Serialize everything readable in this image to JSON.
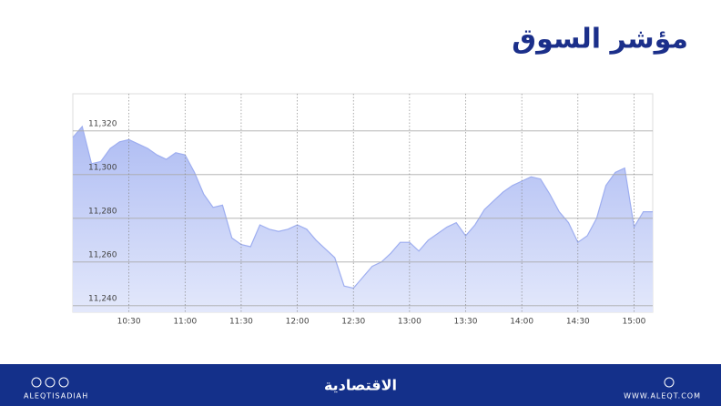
{
  "chart_data": {
    "type": "area",
    "title": "مؤشر السوق",
    "x": [
      "10:00",
      "10:05",
      "10:10",
      "10:15",
      "10:20",
      "10:25",
      "10:30",
      "10:35",
      "10:40",
      "10:45",
      "10:50",
      "10:55",
      "11:00",
      "11:05",
      "11:10",
      "11:15",
      "11:20",
      "11:25",
      "11:30",
      "11:35",
      "11:40",
      "11:45",
      "11:50",
      "11:55",
      "12:00",
      "12:05",
      "12:10",
      "12:15",
      "12:20",
      "12:25",
      "12:30",
      "12:35",
      "12:40",
      "12:45",
      "12:50",
      "12:55",
      "13:00",
      "13:05",
      "13:10",
      "13:15",
      "13:20",
      "13:25",
      "13:30",
      "13:35",
      "13:40",
      "13:45",
      "13:50",
      "13:55",
      "14:00",
      "14:05",
      "14:10",
      "14:15",
      "14:20",
      "14:25",
      "14:30",
      "14:35",
      "14:40",
      "14:45",
      "14:50",
      "14:55",
      "15:00",
      "15:05",
      "15:10"
    ],
    "values": [
      11317,
      11322,
      11305,
      11306,
      11312,
      11315,
      11316,
      11314,
      11312,
      11309,
      11307,
      11310,
      11309,
      11301,
      11291,
      11285,
      11286,
      11271,
      11268,
      11267,
      11277,
      11275,
      11274,
      11275,
      11277,
      11275,
      11270,
      11266,
      11262,
      11249,
      11248,
      11253,
      11258,
      11260,
      11264,
      11269,
      11269,
      11265,
      11270,
      11273,
      11276,
      11278,
      11272,
      11277,
      11284,
      11288,
      11292,
      11295,
      11297,
      11299,
      11298,
      11291,
      11283,
      11278,
      11269,
      11272,
      11280,
      11295,
      11301,
      11303,
      11276,
      11283,
      11283
    ],
    "color": "#9eaef0",
    "xlim": [
      "10:00",
      "15:10"
    ],
    "xticks": [
      "10:30",
      "11:00",
      "11:30",
      "12:00",
      "12:30",
      "13:00",
      "13:30",
      "14:00",
      "14:30",
      "15:00"
    ],
    "ylim": [
      11237,
      11337
    ],
    "yticks": [
      {
        "value": 11240,
        "label": "11,240"
      },
      {
        "value": 11260,
        "label": "11,260"
      },
      {
        "value": 11280,
        "label": "11,280"
      },
      {
        "value": 11300,
        "label": "11,300"
      },
      {
        "value": 11320,
        "label": "11,320"
      }
    ],
    "grid": true
  },
  "footer": {
    "handle": "ALEQTISADIAH",
    "brand": "الاقتصادية",
    "website": "WWW.ALEQT.COM"
  }
}
